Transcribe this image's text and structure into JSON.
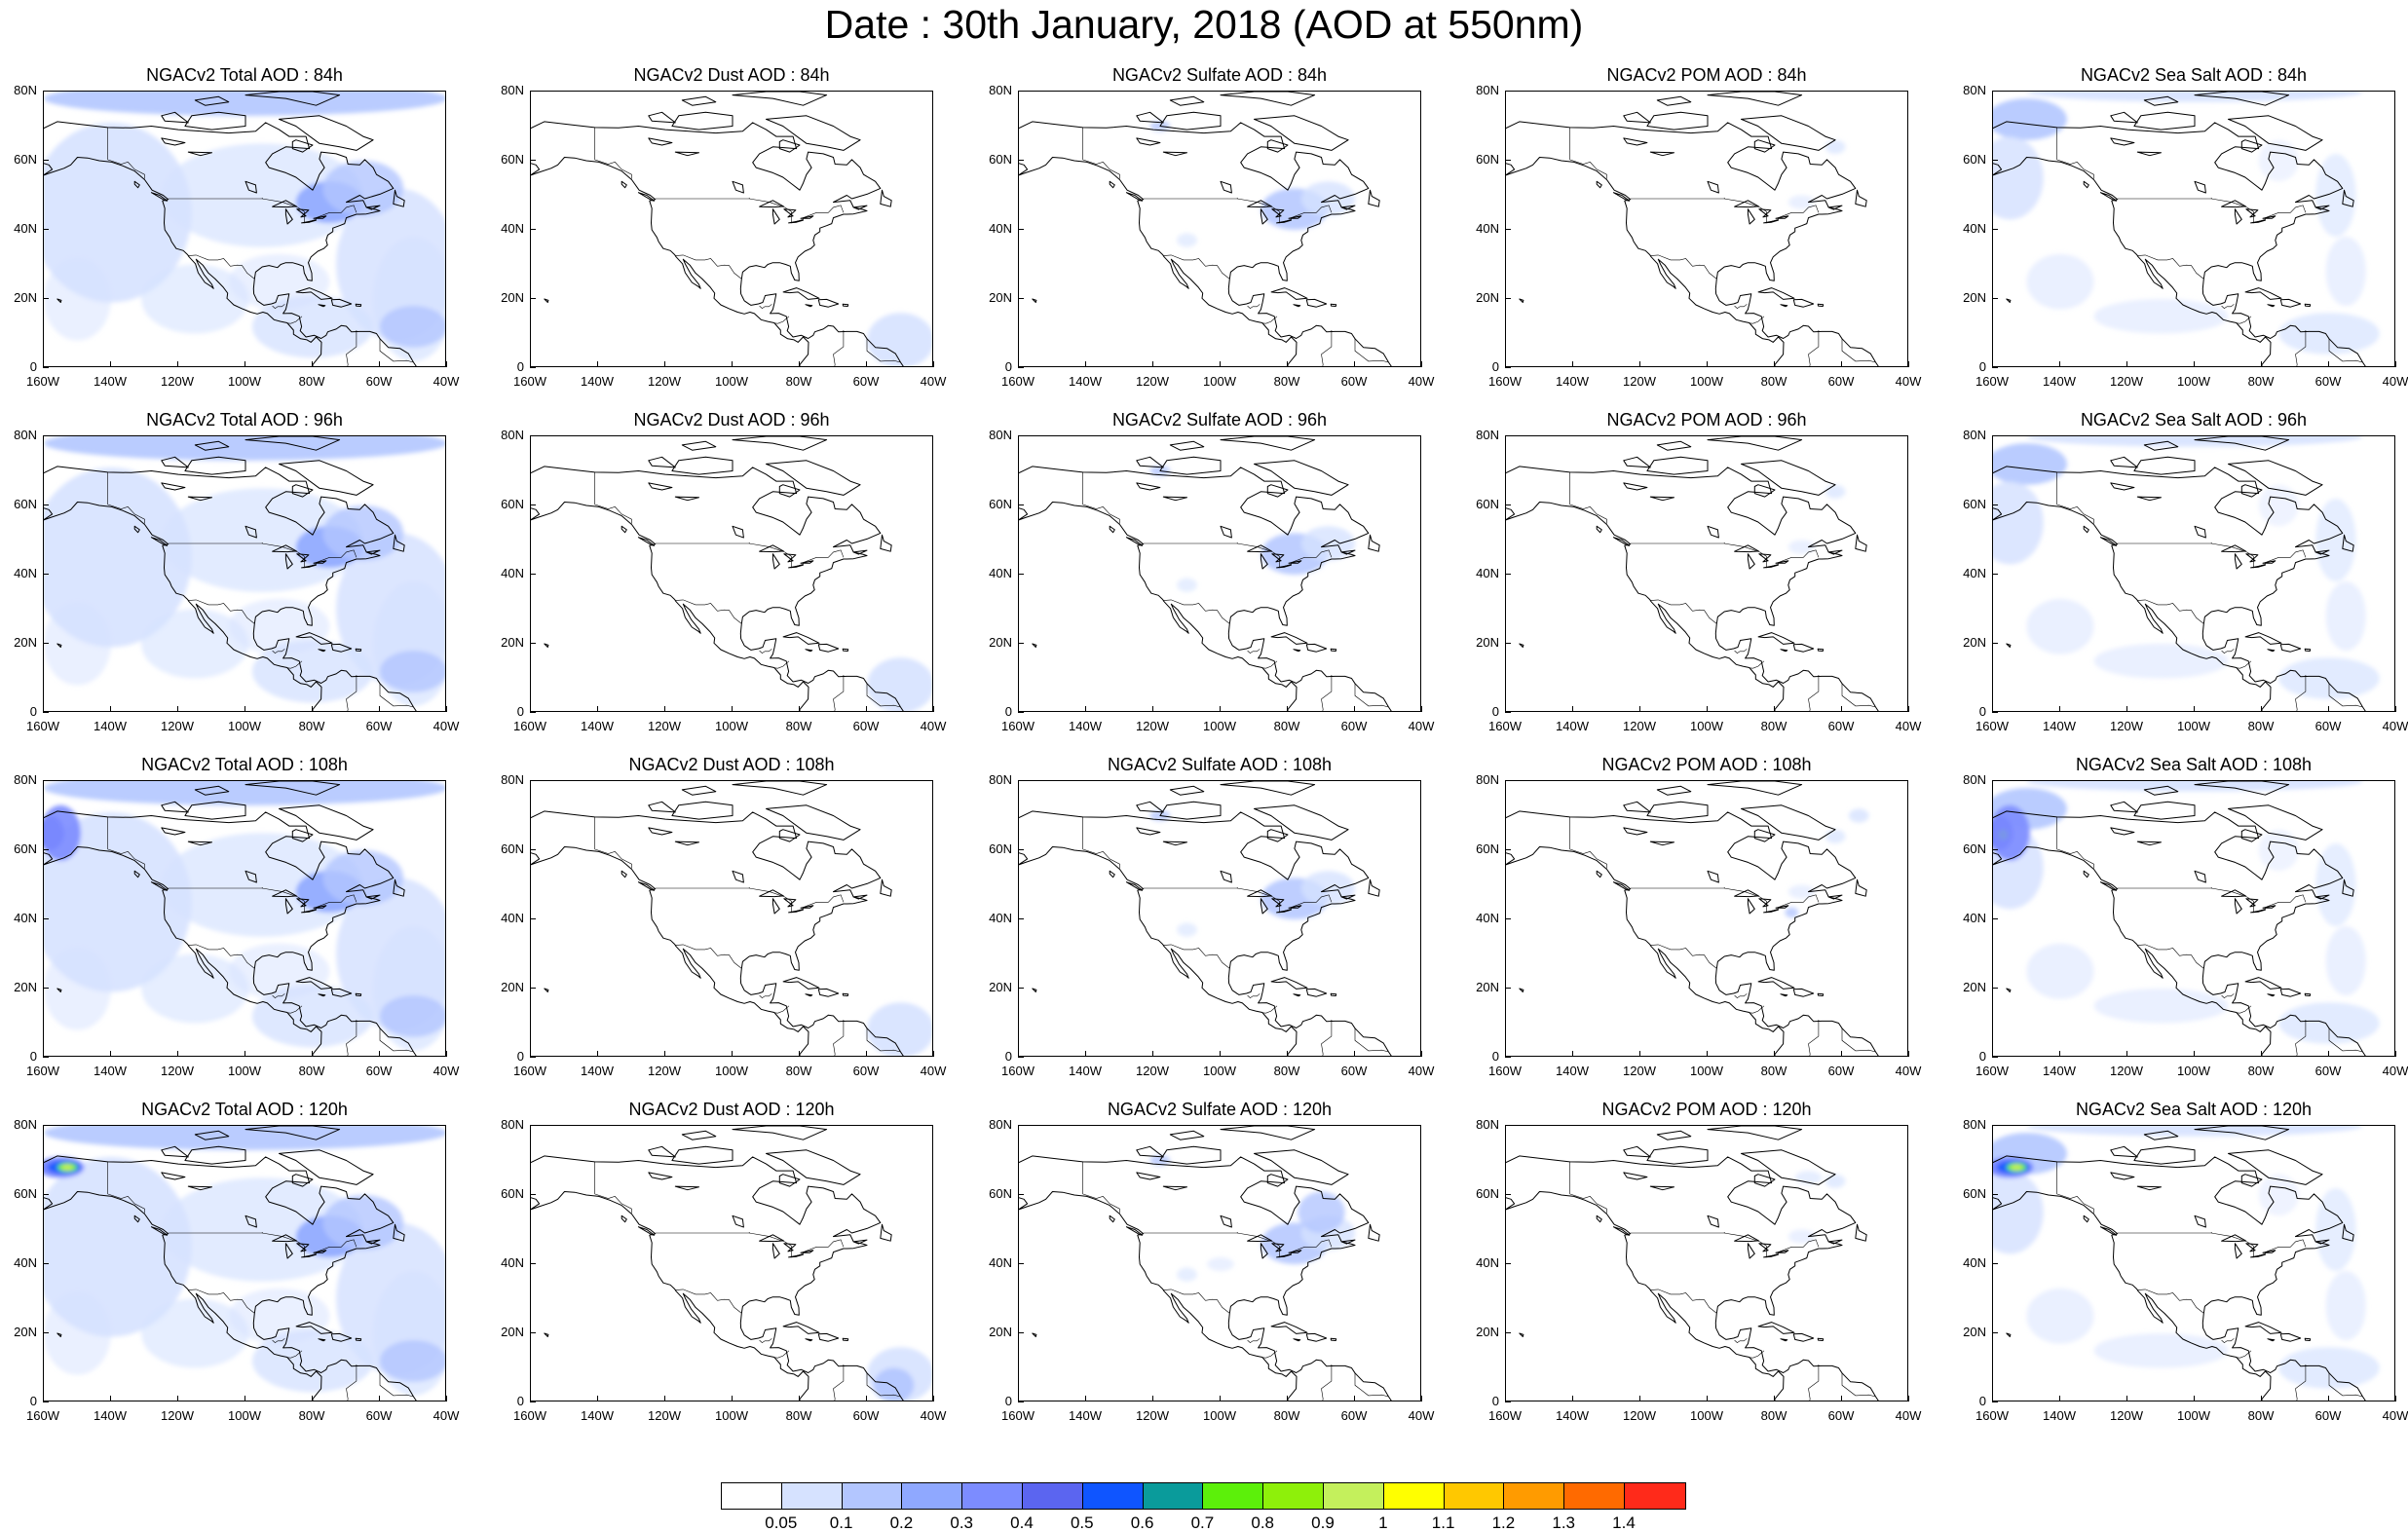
{
  "title": "Date : 30th January, 2018 (AOD at 550nm)",
  "colors": {
    "coast": "#000000",
    "bins": [
      "#ffffff",
      "#d6e2ff",
      "#b3c6ff",
      "#8fa8ff",
      "#7c8cff",
      "#5b65f0",
      "#0f55ff",
      "#0a9b9b",
      "#5cf00a",
      "#8ef00a",
      "#c4f05c",
      "#ffff00",
      "#ffc800",
      "#ff9b00",
      "#ff6a00",
      "#ff2a1a"
    ]
  },
  "colorbar": {
    "labels": [
      "0.05",
      "0.1",
      "0.2",
      "0.3",
      "0.4",
      "0.5",
      "0.6",
      "0.7",
      "0.8",
      "0.9",
      "1",
      "1.1",
      "1.2",
      "1.3",
      "1.4"
    ]
  },
  "axes": {
    "lat_labels": [
      "80N",
      "60N",
      "40N",
      "20N",
      "0"
    ],
    "lon_labels": [
      "160W",
      "140W",
      "120W",
      "100W",
      "80W",
      "60W",
      "40W"
    ]
  },
  "panels": [
    {
      "title": "NGACv2 Total AOD : 84h",
      "kind": "total",
      "row": 0,
      "col": 0
    },
    {
      "title": "NGACv2 Dust AOD : 84h",
      "kind": "dust",
      "row": 0,
      "col": 1
    },
    {
      "title": "NGACv2 Sulfate AOD : 84h",
      "kind": "sulfate",
      "row": 0,
      "col": 2
    },
    {
      "title": "NGACv2 POM AOD : 84h",
      "kind": "pom",
      "row": 0,
      "col": 3
    },
    {
      "title": "NGACv2 Sea Salt AOD : 84h",
      "kind": "seasalt",
      "row": 0,
      "col": 4
    },
    {
      "title": "NGACv2 Total AOD : 96h",
      "kind": "total",
      "row": 1,
      "col": 0
    },
    {
      "title": "NGACv2 Dust AOD : 96h",
      "kind": "dust",
      "row": 1,
      "col": 1
    },
    {
      "title": "NGACv2 Sulfate AOD : 96h",
      "kind": "sulfate",
      "row": 1,
      "col": 2
    },
    {
      "title": "NGACv2 POM AOD : 96h",
      "kind": "pom",
      "row": 1,
      "col": 3
    },
    {
      "title": "NGACv2 Sea Salt AOD : 96h",
      "kind": "seasalt",
      "row": 1,
      "col": 4
    },
    {
      "title": "NGACv2 Total AOD : 108h",
      "kind": "total",
      "row": 2,
      "col": 0
    },
    {
      "title": "NGACv2 Dust AOD : 108h",
      "kind": "dust",
      "row": 2,
      "col": 1
    },
    {
      "title": "NGACv2 Sulfate AOD : 108h",
      "kind": "sulfate",
      "row": 2,
      "col": 2
    },
    {
      "title": "NGACv2 POM AOD : 108h",
      "kind": "pom",
      "row": 2,
      "col": 3
    },
    {
      "title": "NGACv2 Sea Salt AOD : 108h",
      "kind": "seasalt",
      "row": 2,
      "col": 4
    },
    {
      "title": "NGACv2 Total AOD : 120h",
      "kind": "total",
      "row": 3,
      "col": 0
    },
    {
      "title": "NGACv2 Dust AOD : 120h",
      "kind": "dust",
      "row": 3,
      "col": 1
    },
    {
      "title": "NGACv2 Sulfate AOD : 120h",
      "kind": "sulfate",
      "row": 3,
      "col": 2
    },
    {
      "title": "NGACv2 POM AOD : 120h",
      "kind": "pom",
      "row": 3,
      "col": 3
    },
    {
      "title": "NGACv2 Sea Salt  AOD : 120h",
      "kind": "seasalt",
      "row": 3,
      "col": 4
    }
  ]
}
